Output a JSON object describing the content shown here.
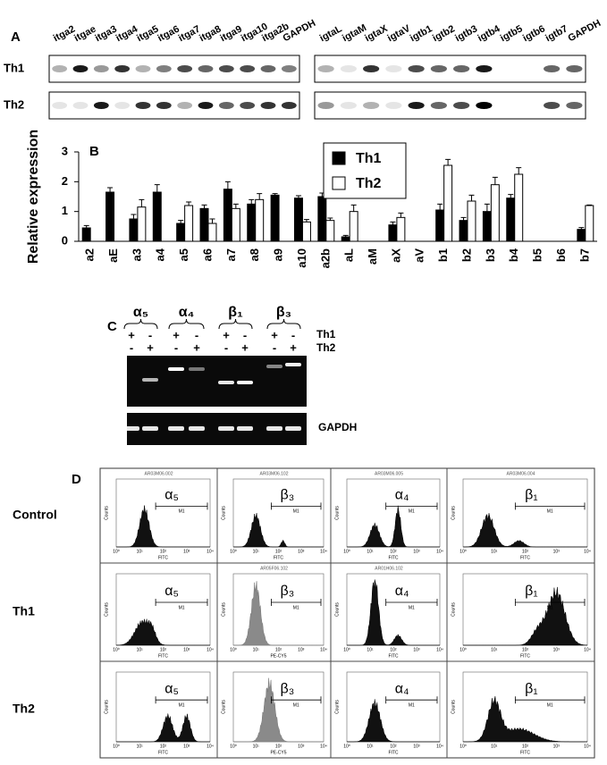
{
  "panel_a": {
    "label": "A",
    "rows": [
      "Th1",
      "Th2"
    ],
    "left_lanes": [
      "itga2",
      "itgae",
      "itga3",
      "itga4",
      "itga5",
      "itga6",
      "itga7",
      "itga8",
      "itga9",
      "itga10",
      "itga2b",
      "GAPDH"
    ],
    "right_lanes": [
      "igtaL",
      "igtaM",
      "igtaX",
      "igtaV",
      "igtb1",
      "igtb2",
      "igtb3",
      "igtb4",
      "igtb5",
      "igtb6",
      "igtb7",
      "GAPDH"
    ]
  },
  "chart_data": {
    "type": "bar",
    "label": "B",
    "ylabel": "Relative expression",
    "categories": [
      "a2",
      "aE",
      "a3",
      "a4",
      "a5",
      "a6",
      "a7",
      "a8",
      "a9",
      "a10",
      "a2b",
      "aL",
      "aM",
      "aX",
      "aV",
      "b1",
      "b2",
      "b3",
      "b4",
      "b5",
      "b6",
      "b7"
    ],
    "series": [
      {
        "name": "Th1",
        "color": "#000000",
        "values": [
          0.45,
          1.65,
          0.75,
          1.65,
          0.6,
          1.1,
          1.75,
          1.25,
          1.55,
          1.45,
          1.5,
          0.15,
          null,
          0.55,
          null,
          1.05,
          0.7,
          1.0,
          1.45,
          null,
          null,
          0.4
        ],
        "errors": [
          0.08,
          0.15,
          0.15,
          0.25,
          0.1,
          0.12,
          0.25,
          0.15,
          0.05,
          0.08,
          0.12,
          0.05,
          null,
          0.1,
          null,
          0.2,
          0.1,
          0.25,
          0.12,
          null,
          null,
          0.06
        ]
      },
      {
        "name": "Th2",
        "color": "#ffffff",
        "values": [
          null,
          null,
          1.15,
          null,
          1.2,
          0.6,
          1.1,
          1.4,
          null,
          0.65,
          0.7,
          1.0,
          null,
          0.8,
          null,
          2.55,
          1.35,
          1.9,
          2.25,
          null,
          null,
          1.2
        ],
        "errors": [
          null,
          null,
          0.25,
          null,
          0.12,
          0.15,
          0.15,
          0.2,
          null,
          0.08,
          0.08,
          0.22,
          null,
          0.15,
          null,
          0.2,
          0.2,
          0.25,
          0.22,
          null,
          null,
          0.02
        ]
      }
    ],
    "ylim": [
      0,
      3
    ],
    "yticks": [
      0,
      1,
      2,
      3
    ],
    "legend": "top-center"
  },
  "panel_c": {
    "label": "C",
    "groups": [
      "α₅",
      "α₄",
      "β₁",
      "β₃"
    ],
    "row_labels": [
      "Th1",
      "Th2"
    ],
    "th1_signs": [
      "+",
      "-",
      "+",
      "-",
      "+",
      "-",
      "+",
      "-"
    ],
    "th2_signs": [
      "-",
      "+",
      "-",
      "+",
      "-",
      "+",
      "-",
      "+"
    ],
    "control_label": "GAPDH"
  },
  "panel_d": {
    "label": "D",
    "ylabel": "Counts",
    "xticks": [
      "10⁰",
      "10¹",
      "10²",
      "10³",
      "10⁴"
    ],
    "rows": [
      {
        "label": "Control",
        "cells": [
          {
            "header": "AR03M06.002",
            "marker": "α₅",
            "gate": "M1",
            "xlabel": "FITC"
          },
          {
            "header": "AR03M06.102",
            "marker": "β₃",
            "gate": "M1",
            "xlabel": "FITC"
          },
          {
            "header": "AR03M06.005",
            "marker": "α₄",
            "gate": "M1",
            "xlabel": "FITC"
          },
          {
            "header": "AR03M06.004",
            "marker": "β₁",
            "gate": "M1",
            "xlabel": "FITC"
          }
        ]
      },
      {
        "label": "Th1",
        "cells": [
          {
            "marker": "α₅",
            "gate": "M1",
            "xlabel": "FITC"
          },
          {
            "header": "AR05F06.102",
            "marker": "β₃",
            "gate": "M1",
            "xlabel": "PE-CY5"
          },
          {
            "header": "AR01H06.102",
            "marker": "α₄",
            "gate": "M1",
            "xlabel": "FITC"
          },
          {
            "marker": "β₁",
            "gate": "M1",
            "xlabel": "FITC"
          }
        ]
      },
      {
        "label": "Th2",
        "cells": [
          {
            "marker": "α₅",
            "gate": "M1",
            "xlabel": "FITC"
          },
          {
            "marker": "β₃",
            "gate": "M1",
            "xlabel": "PE-CY5"
          },
          {
            "marker": "α₄",
            "gate": "M1",
            "xlabel": "FITC"
          },
          {
            "marker": "β₁",
            "gate": "M1",
            "xlabel": "FITC"
          }
        ]
      }
    ]
  }
}
